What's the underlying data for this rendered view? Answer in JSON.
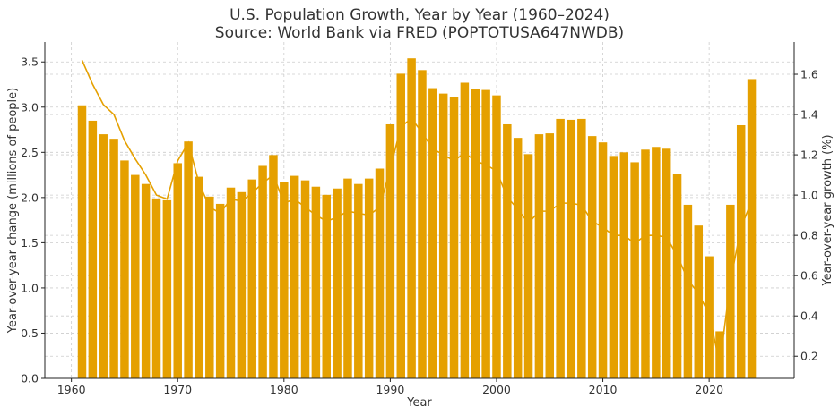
{
  "chart_data": {
    "type": "bar",
    "title": "U.S. Population Growth, Year by Year (1960–2024)",
    "subtitle": "Source: World Bank via FRED (POPTOTUSA647NWDB)",
    "xlabel": "Year",
    "ylabel": "Year-over-year change (millions of people)",
    "y2label": "Year-over-year growth (%)",
    "xlim": [
      1957.5,
      2028
    ],
    "ylim": [
      0,
      3.72
    ],
    "y2lim": [
      0.09,
      1.76
    ],
    "x_ticks": [
      1960,
      1970,
      1980,
      1990,
      2000,
      2010,
      2020
    ],
    "y_ticks": [
      0.0,
      0.5,
      1.0,
      1.5,
      2.0,
      2.5,
      3.0,
      3.5
    ],
    "y2_ticks": [
      0.2,
      0.4,
      0.6,
      0.8,
      1.0,
      1.2,
      1.4,
      1.6
    ],
    "grid": true,
    "x": [
      1961,
      1962,
      1963,
      1964,
      1965,
      1966,
      1967,
      1968,
      1969,
      1970,
      1971,
      1972,
      1973,
      1974,
      1975,
      1976,
      1977,
      1978,
      1979,
      1980,
      1981,
      1982,
      1983,
      1984,
      1985,
      1986,
      1987,
      1988,
      1989,
      1990,
      1991,
      1992,
      1993,
      1994,
      1995,
      1996,
      1997,
      1998,
      1999,
      2000,
      2001,
      2002,
      2003,
      2004,
      2005,
      2006,
      2007,
      2008,
      2009,
      2010,
      2011,
      2012,
      2013,
      2014,
      2015,
      2016,
      2017,
      2018,
      2019,
      2020,
      2021,
      2022,
      2023,
      2024
    ],
    "series": [
      {
        "type": "bar",
        "axis": "left",
        "color": "#E5A000",
        "values": [
          3.02,
          2.85,
          2.7,
          2.65,
          2.41,
          2.25,
          2.15,
          1.99,
          1.97,
          2.38,
          2.62,
          2.23,
          2.01,
          1.93,
          2.11,
          2.06,
          2.2,
          2.35,
          2.47,
          2.17,
          2.24,
          2.19,
          2.12,
          2.03,
          2.1,
          2.21,
          2.15,
          2.21,
          2.32,
          2.81,
          3.37,
          3.54,
          3.41,
          3.21,
          3.15,
          3.11,
          3.27,
          3.2,
          3.19,
          3.13,
          2.81,
          2.66,
          2.48,
          2.7,
          2.71,
          2.87,
          2.86,
          2.87,
          2.68,
          2.61,
          2.46,
          2.5,
          2.39,
          2.53,
          2.56,
          2.54,
          2.26,
          1.92,
          1.69,
          1.35,
          0.52,
          1.92,
          2.8,
          3.31
        ]
      },
      {
        "type": "line",
        "axis": "right",
        "color": "#E5A000",
        "values": [
          1.67,
          1.55,
          1.45,
          1.4,
          1.27,
          1.18,
          1.1,
          1.0,
          0.98,
          1.17,
          1.26,
          1.06,
          0.94,
          0.91,
          0.98,
          0.97,
          1.01,
          1.06,
          1.1,
          0.96,
          0.98,
          0.94,
          0.9,
          0.87,
          0.89,
          0.92,
          0.91,
          0.9,
          0.94,
          1.13,
          1.34,
          1.38,
          1.31,
          1.23,
          1.2,
          1.17,
          1.21,
          1.17,
          1.15,
          1.12,
          0.99,
          0.93,
          0.86,
          0.92,
          0.92,
          0.96,
          0.96,
          0.95,
          0.87,
          0.84,
          0.8,
          0.8,
          0.76,
          0.8,
          0.8,
          0.79,
          0.7,
          0.58,
          0.51,
          0.41,
          0.16,
          0.57,
          0.84,
          0.97
        ]
      }
    ]
  }
}
